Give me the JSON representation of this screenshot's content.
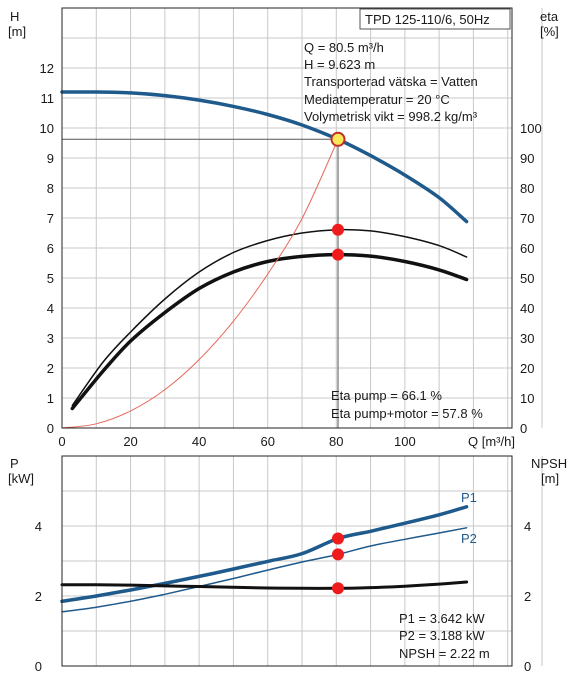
{
  "chart_data": [
    {
      "type": "line",
      "title": "TPD 125-110/6, 50Hz",
      "xlabel": "Q [m³/h]",
      "ylabel_left": [
        "H",
        "[m]"
      ],
      "ylabel_right": [
        "eta",
        "[%]"
      ],
      "xlim": [
        0,
        145
      ],
      "ylim_left": [
        0,
        13
      ],
      "ylim_right": [
        0,
        130
      ],
      "x_ticks": [
        "0",
        "20",
        "40",
        "60",
        "80",
        "100"
      ],
      "y_ticks_left": [
        "0",
        "1",
        "2",
        "3",
        "4",
        "5",
        "6",
        "7",
        "8",
        "9",
        "10",
        "11",
        "12"
      ],
      "y_ticks_right": [
        "0",
        "10",
        "20",
        "30",
        "40",
        "50",
        "60",
        "70",
        "80",
        "90",
        "100"
      ],
      "grid": true,
      "series": [
        {
          "key": "H",
          "axis": "left",
          "color": "#1f5a8c",
          "x": [
            0,
            10,
            20,
            30,
            40,
            50,
            60,
            70,
            80.5,
            90,
            100,
            110,
            118
          ],
          "y": [
            11.2,
            11.2,
            11.17,
            11.08,
            10.93,
            10.72,
            10.45,
            10.1,
            9.62,
            9.08,
            8.43,
            7.68,
            6.88
          ]
        },
        {
          "key": "eta_pump",
          "axis": "right",
          "color": "#111111",
          "x": [
            3,
            12,
            20,
            30,
            40,
            50,
            60,
            70,
            80.5,
            90,
            100,
            110,
            118
          ],
          "y": [
            7.5,
            22,
            32,
            43,
            52,
            58.5,
            62.5,
            65,
            66.1,
            65.7,
            63.8,
            60.8,
            57
          ]
        },
        {
          "key": "eta_pump_motor",
          "axis": "right",
          "color": "#111111",
          "x": [
            3,
            12,
            20,
            30,
            40,
            50,
            60,
            70,
            80.5,
            90,
            100,
            110,
            118
          ],
          "y": [
            6.5,
            19,
            29,
            38.5,
            46.5,
            52,
            55.5,
            57.2,
            57.8,
            57.3,
            55.5,
            52.7,
            49.5
          ]
        },
        {
          "key": "system_curve",
          "axis": "left",
          "color": "#e8685a",
          "x": [
            0,
            10,
            20,
            30,
            40,
            50,
            60,
            70,
            80.5
          ],
          "y": [
            0,
            0.14,
            0.57,
            1.28,
            2.28,
            3.56,
            5.13,
            6.98,
            9.62
          ]
        }
      ],
      "operating_point": {
        "Q": 80.5,
        "H": 9.623
      },
      "markers": [
        {
          "axis": "left",
          "x": 80.5,
          "y": 9.623
        },
        {
          "axis": "right",
          "x": 80.5,
          "y": 66.1
        },
        {
          "axis": "right",
          "x": 80.5,
          "y": 57.8
        }
      ],
      "info_lines": [
        "Q = 80.5 m³/h",
        "H = 9.623 m",
        "Transporterad vätska = Vatten",
        "Mediatemperatur = 20 °C",
        "Volymetrisk vikt = 998.2 kg/m³"
      ],
      "eta_lines": [
        "Eta pump = 66.1 %",
        "Eta pump+motor = 57.8 %"
      ]
    },
    {
      "type": "line",
      "xlim": [
        0,
        145
      ],
      "ylabel_left": [
        "P",
        "[kW]"
      ],
      "ylabel_right": [
        "NPSH",
        "[m]"
      ],
      "ylim_left": [
        0,
        5.5
      ],
      "ylim_right": [
        0,
        5.5
      ],
      "y_ticks_left": [
        "0",
        "2",
        "4"
      ],
      "y_ticks_right": [
        "0",
        "2",
        "4"
      ],
      "grid": true,
      "series": [
        {
          "name": "P1",
          "axis": "left",
          "color": "#1f5a8c",
          "x": [
            0,
            10,
            20,
            30,
            40,
            50,
            60,
            70,
            80.5,
            90,
            100,
            110,
            118
          ],
          "y": [
            1.85,
            2.0,
            2.17,
            2.36,
            2.56,
            2.77,
            2.99,
            3.21,
            3.642,
            3.85,
            4.08,
            4.32,
            4.55
          ]
        },
        {
          "name": "P2",
          "axis": "left",
          "color": "#1f5a8c",
          "x": [
            0,
            10,
            20,
            30,
            40,
            50,
            60,
            70,
            80.5,
            90,
            100,
            110,
            118
          ],
          "y": [
            1.55,
            1.68,
            1.85,
            2.05,
            2.27,
            2.5,
            2.74,
            2.97,
            3.188,
            3.43,
            3.62,
            3.8,
            3.95
          ]
        },
        {
          "key": "NPSH",
          "axis": "right",
          "color": "#111111",
          "x": [
            0,
            10,
            20,
            30,
            40,
            50,
            60,
            70,
            80.5,
            90,
            100,
            110,
            118
          ],
          "y": [
            2.32,
            2.32,
            2.31,
            2.29,
            2.27,
            2.25,
            2.23,
            2.22,
            2.22,
            2.24,
            2.28,
            2.34,
            2.4
          ]
        }
      ],
      "markers": [
        {
          "axis": "left",
          "x": 80.5,
          "y": 3.642
        },
        {
          "axis": "left",
          "x": 80.5,
          "y": 3.188
        },
        {
          "axis": "right",
          "x": 80.5,
          "y": 2.22
        }
      ],
      "info_lines": [
        "P1 = 3.642 kW",
        "P2 = 3.188 kW",
        "NPSH = 2.22 m"
      ]
    }
  ]
}
